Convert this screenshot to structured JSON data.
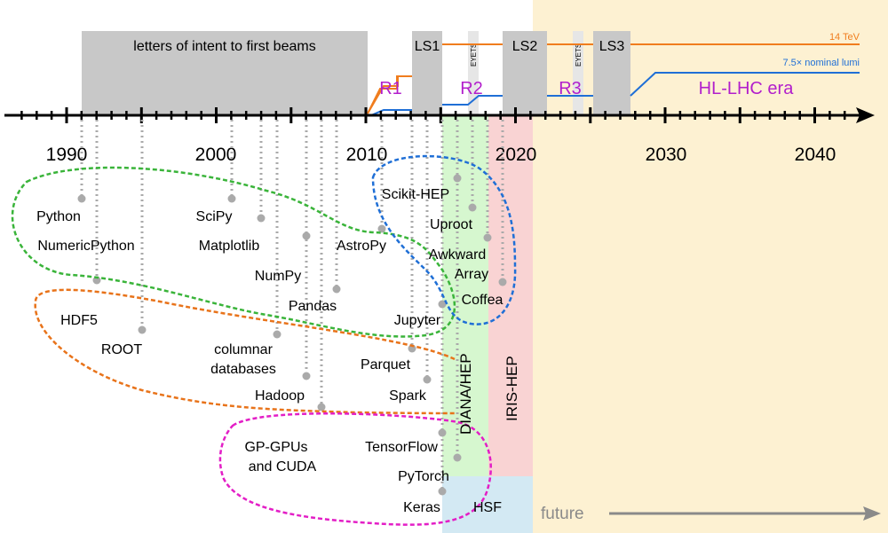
{
  "colors": {
    "future_bg": "#fdf1d2",
    "shutdown_gray": "#c8c8c8",
    "eyets_gray": "#e6e6e6",
    "energy_orange": "#f07d1e",
    "lumi_blue": "#1f6fd6",
    "run_purple": "#b21fcc",
    "diana_green": "#d6f7cf",
    "iris_red": "#f9d3d3",
    "hsf_blue": "#d3e9f3",
    "dot_gray": "#aaaaaa",
    "loop_green": "#3ab43a",
    "loop_orange": "#e8731a",
    "loop_blue": "#1f6fd6",
    "loop_magenta": "#e31ec6"
  },
  "timeline": {
    "header_block": "letters of intent to first beams",
    "shutdowns": [
      "LS1",
      "LS2",
      "LS3"
    ],
    "eyets": [
      "EYETS",
      "EYETS"
    ],
    "runs": [
      "R1",
      "R2",
      "R3"
    ],
    "era": "HL-LHC era",
    "energy_label": "14 TeV",
    "lumi_label": "7.5× nominal lumi",
    "years": [
      "1990",
      "2000",
      "2010",
      "2020",
      "2030",
      "2040"
    ]
  },
  "projects": {
    "items": [
      "Python",
      "NumericPython",
      "SciPy",
      "Matplotlib",
      "NumPy",
      "AstroPy",
      "Pandas",
      "HDF5",
      "ROOT",
      "columnar",
      "databases",
      "Hadoop",
      "Jupyter",
      "Parquet",
      "Spark",
      "GP-GPUs",
      "and CUDA",
      "TensorFlow",
      "PyTorch",
      "Keras",
      "Scikit-HEP",
      "Uproot",
      "Awkward",
      "Array",
      "Coffea"
    ]
  },
  "programs": {
    "diana": "DIANA/HEP",
    "iris": "IRIS-HEP",
    "hsf": "HSF"
  },
  "future_label": "future"
}
